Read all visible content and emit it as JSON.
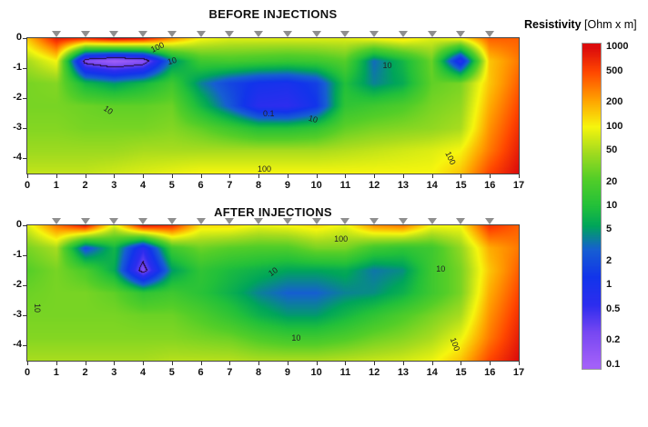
{
  "legend": {
    "title": "Resistivity",
    "units": "[Ohm x m]"
  },
  "colorbar": {
    "ticks": [
      1000,
      500,
      200,
      100,
      50,
      20,
      10,
      5,
      2,
      1,
      0.5,
      0.2,
      0.1
    ],
    "log_min": -1.05,
    "log_max": 3.05
  },
  "colormap": {
    "stops": [
      [
        -1.0,
        162,
        96,
        248
      ],
      [
        -0.6,
        120,
        72,
        242
      ],
      [
        -0.25,
        45,
        45,
        238
      ],
      [
        0.1,
        18,
        52,
        235
      ],
      [
        0.45,
        22,
        95,
        210
      ],
      [
        0.75,
        0,
        165,
        90
      ],
      [
        1.0,
        34,
        192,
        58
      ],
      [
        1.35,
        84,
        206,
        40
      ],
      [
        1.7,
        168,
        220,
        30
      ],
      [
        2.0,
        246,
        246,
        14
      ],
      [
        2.35,
        255,
        160,
        0
      ],
      [
        2.7,
        255,
        70,
        0
      ],
      [
        3.0,
        220,
        12,
        12
      ]
    ]
  },
  "chart_data": [
    {
      "type": "heatmap",
      "title": "BEFORE INJECTIONS",
      "x_range": [
        0,
        17
      ],
      "depth_range": [
        0,
        -4.5
      ],
      "x_ticks": [
        0,
        1,
        2,
        3,
        4,
        5,
        6,
        7,
        8,
        9,
        10,
        11,
        12,
        13,
        14,
        15,
        16,
        17
      ],
      "y_ticks": [
        0,
        -1,
        -2,
        -3,
        -4
      ],
      "electrode_x": [
        1,
        2,
        3,
        4,
        5,
        6,
        7,
        8,
        9,
        10,
        11,
        12,
        13,
        14,
        15,
        16
      ],
      "values_unit": "log10(Ohm x m)",
      "grid_rows_depth": [
        0,
        -0.75,
        -1.5,
        -2.25,
        -3.0,
        -3.75,
        -4.5
      ],
      "grid_log10": [
        [
          2.2,
          2.9,
          2.8,
          3.0,
          2.9,
          2.4,
          2.0,
          1.9,
          1.9,
          1.9,
          1.9,
          1.9,
          2.0,
          2.1,
          1.9,
          2.0,
          2.6,
          2.6
        ],
        [
          1.7,
          2.0,
          -0.7,
          -1.0,
          -0.8,
          0.6,
          1.2,
          1.25,
          1.2,
          1.15,
          1.2,
          1.35,
          0.5,
          0.9,
          1.45,
          -0.2,
          2.2,
          2.5
        ],
        [
          1.5,
          1.55,
          0.9,
          0.7,
          0.9,
          1.2,
          0.6,
          0.25,
          0.05,
          0.0,
          0.2,
          1.0,
          0.6,
          0.8,
          1.4,
          1.5,
          2.2,
          2.6
        ],
        [
          1.5,
          1.5,
          1.45,
          1.4,
          1.4,
          1.45,
          0.9,
          0.4,
          -0.2,
          -0.25,
          0.1,
          1.1,
          1.2,
          1.3,
          1.5,
          1.6,
          2.3,
          2.7
        ],
        [
          1.55,
          1.55,
          1.5,
          1.5,
          1.5,
          1.55,
          1.4,
          1.2,
          1.0,
          1.0,
          1.1,
          1.4,
          1.5,
          1.55,
          1.6,
          1.7,
          2.4,
          2.8
        ],
        [
          1.65,
          1.65,
          1.65,
          1.65,
          1.7,
          1.7,
          1.7,
          1.7,
          1.7,
          1.7,
          1.7,
          1.75,
          1.8,
          1.85,
          1.9,
          2.0,
          2.5,
          2.9
        ],
        [
          1.8,
          1.8,
          1.8,
          1.85,
          1.9,
          1.95,
          2.0,
          2.0,
          2.0,
          2.0,
          2.0,
          2.0,
          2.0,
          2.0,
          2.0,
          2.2,
          2.7,
          3.0
        ]
      ],
      "contour_labels": [
        {
          "text": "100",
          "x": 4.5,
          "z": -0.3,
          "rot": -25
        },
        {
          "text": "10",
          "x": 5.0,
          "z": -0.75,
          "rot": -15
        },
        {
          "text": "10",
          "x": 2.8,
          "z": -2.4,
          "rot": 35
        },
        {
          "text": "0.1",
          "x": 8.35,
          "z": -2.5,
          "rot": 0
        },
        {
          "text": "10",
          "x": 9.9,
          "z": -2.7,
          "rot": 15
        },
        {
          "text": "10",
          "x": 12.45,
          "z": -0.9,
          "rot": 0
        },
        {
          "text": "100",
          "x": 8.2,
          "z": -4.35,
          "rot": 0
        },
        {
          "text": "100",
          "x": 14.65,
          "z": -4.0,
          "rot": 65
        }
      ]
    },
    {
      "type": "heatmap",
      "title": "AFTER INJECTIONS",
      "x_range": [
        0,
        17
      ],
      "depth_range": [
        0,
        -4.5
      ],
      "x_ticks": [
        0,
        1,
        2,
        3,
        4,
        5,
        6,
        7,
        8,
        9,
        10,
        11,
        12,
        13,
        14,
        15,
        16,
        17
      ],
      "y_ticks": [
        0,
        -1,
        -2,
        -3,
        -4
      ],
      "electrode_x": [
        1,
        2,
        3,
        4,
        5,
        6,
        7,
        8,
        9,
        10,
        11,
        12,
        13,
        14,
        15,
        16
      ],
      "values_unit": "log10(Ohm x m)",
      "grid_rows_depth": [
        0,
        -0.75,
        -1.5,
        -2.25,
        -3.0,
        -3.75,
        -4.5
      ],
      "grid_log10": [
        [
          1.9,
          2.5,
          2.9,
          1.9,
          2.9,
          2.8,
          2.1,
          2.1,
          1.95,
          2.0,
          2.1,
          1.95,
          2.4,
          2.5,
          2.0,
          2.0,
          2.8,
          2.6
        ],
        [
          1.5,
          1.7,
          0.3,
          0.9,
          -0.2,
          1.2,
          1.45,
          1.35,
          1.3,
          1.3,
          1.5,
          1.5,
          1.2,
          1.1,
          1.2,
          1.6,
          2.3,
          2.5
        ],
        [
          1.35,
          1.5,
          1.3,
          0.8,
          -0.7,
          0.7,
          1.1,
          0.95,
          0.85,
          0.75,
          0.75,
          0.8,
          0.55,
          0.65,
          1.2,
          1.5,
          2.2,
          2.6
        ],
        [
          1.45,
          1.5,
          1.5,
          1.4,
          1.1,
          1.2,
          1.05,
          0.85,
          0.6,
          0.45,
          0.45,
          0.6,
          0.65,
          0.85,
          1.2,
          1.5,
          2.3,
          2.7
        ],
        [
          1.5,
          1.5,
          1.5,
          1.5,
          1.45,
          1.45,
          1.3,
          1.1,
          0.85,
          0.7,
          0.7,
          0.9,
          1.1,
          1.3,
          1.5,
          1.7,
          2.4,
          2.8
        ],
        [
          1.55,
          1.55,
          1.55,
          1.55,
          1.55,
          1.55,
          1.5,
          1.45,
          1.3,
          1.2,
          1.2,
          1.3,
          1.45,
          1.55,
          1.7,
          1.95,
          2.5,
          2.9
        ],
        [
          1.7,
          1.7,
          1.7,
          1.7,
          1.7,
          1.75,
          1.75,
          1.75,
          1.7,
          1.7,
          1.7,
          1.75,
          1.8,
          1.85,
          1.95,
          2.2,
          2.7,
          3.0
        ]
      ],
      "contour_labels": [
        {
          "text": "100",
          "x": 10.85,
          "z": -0.45,
          "rot": 0
        },
        {
          "text": "10",
          "x": 8.5,
          "z": -1.55,
          "rot": -35
        },
        {
          "text": "10",
          "x": 0.35,
          "z": -2.75,
          "rot": 90
        },
        {
          "text": "10",
          "x": 14.3,
          "z": -1.45,
          "rot": 0
        },
        {
          "text": "10",
          "x": 9.3,
          "z": -3.75,
          "rot": 0
        },
        {
          "text": "100",
          "x": 14.8,
          "z": -3.95,
          "rot": 70
        }
      ]
    }
  ]
}
